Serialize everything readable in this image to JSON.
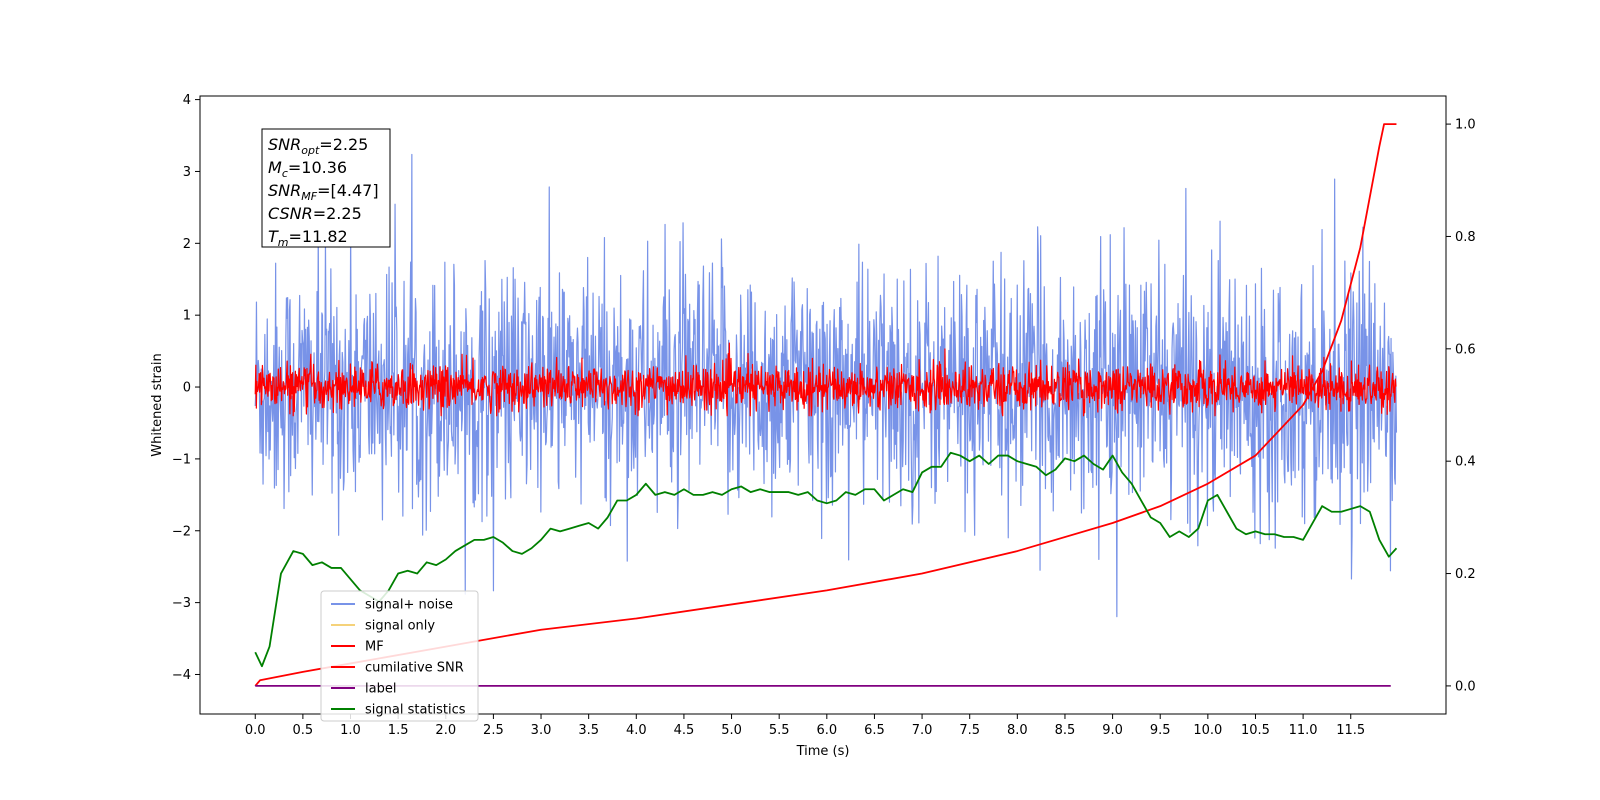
{
  "chart_data": {
    "type": "line",
    "xlabel": "Time (s)",
    "ylabel": "Whitened strain",
    "xlim": [
      -0.58,
      12.5
    ],
    "ylim": [
      -4.55,
      4.05
    ],
    "ylim_right": [
      -0.05,
      1.05
    ],
    "xticks": [
      "0.0",
      "0.5",
      "1.0",
      "1.5",
      "2.0",
      "2.5",
      "3.0",
      "3.5",
      "4.0",
      "4.5",
      "5.0",
      "5.5",
      "6.0",
      "6.5",
      "7.0",
      "7.5",
      "8.0",
      "8.5",
      "9.0",
      "9.5",
      "10.0",
      "10.5",
      "11.0",
      "11.5"
    ],
    "yticks_left": [
      "−4",
      "−3",
      "−2",
      "−1",
      "0",
      "1",
      "2",
      "3",
      "4"
    ],
    "yticks_right": [
      "0.0",
      "0.2",
      "0.4",
      "0.6",
      "0.8",
      "1.0"
    ],
    "legend_position": "lower-left",
    "colors": {
      "signal_noise": "#7893e8",
      "signal_only": "#f5d27a",
      "mf": "#ff0000",
      "cumulative": "#ff0000",
      "label": "#800080",
      "statistics": "#008000"
    },
    "series": [
      {
        "key": "signal_noise",
        "name": "signal+ noise",
        "axis": "left",
        "x_range": [
          0.0,
          11.98
        ],
        "envelope_typical": [
          -1.7,
          1.8
        ],
        "extremes": [
          -3.85,
          3.65
        ]
      },
      {
        "key": "signal_only",
        "name": "signal only",
        "axis": "left"
      },
      {
        "key": "mf",
        "name": "MF",
        "axis": "left",
        "x_range": [
          0.0,
          11.98
        ],
        "envelope_typical": [
          -0.35,
          0.45
        ],
        "extremes": [
          -0.4,
          1.0
        ]
      },
      {
        "key": "cumulative",
        "name": "cumilative SNR",
        "axis": "right",
        "x": [
          0.0,
          0.05,
          0.5,
          1.0,
          2.0,
          3.0,
          4.0,
          5.0,
          6.0,
          7.0,
          8.0,
          9.0,
          9.5,
          10.0,
          10.5,
          11.0,
          11.2,
          11.4,
          11.6,
          11.7,
          11.8,
          11.85,
          11.9,
          11.98
        ],
        "values": [
          0.0,
          0.01,
          0.025,
          0.04,
          0.07,
          0.1,
          0.12,
          0.145,
          0.17,
          0.2,
          0.24,
          0.29,
          0.32,
          0.36,
          0.41,
          0.5,
          0.56,
          0.65,
          0.78,
          0.87,
          0.96,
          1.0,
          1.0,
          1.0
        ]
      },
      {
        "key": "label",
        "name": "label",
        "axis": "right",
        "x": [
          0.0,
          11.92
        ],
        "values": [
          0.0,
          0.0
        ]
      },
      {
        "key": "statistics",
        "name": "signal statistics",
        "axis": "right",
        "x": [
          0.0,
          0.07,
          0.15,
          0.27,
          0.4,
          0.5,
          0.6,
          0.7,
          0.8,
          0.9,
          1.0,
          1.1,
          1.2,
          1.3,
          1.4,
          1.5,
          1.6,
          1.7,
          1.8,
          1.9,
          2.0,
          2.1,
          2.2,
          2.3,
          2.4,
          2.5,
          2.6,
          2.7,
          2.8,
          2.9,
          3.0,
          3.1,
          3.2,
          3.3,
          3.4,
          3.5,
          3.6,
          3.7,
          3.8,
          3.9,
          4.0,
          4.1,
          4.2,
          4.3,
          4.4,
          4.5,
          4.6,
          4.7,
          4.8,
          4.9,
          5.0,
          5.1,
          5.2,
          5.3,
          5.4,
          5.5,
          5.6,
          5.7,
          5.8,
          5.9,
          6.0,
          6.1,
          6.2,
          6.3,
          6.4,
          6.5,
          6.6,
          6.7,
          6.8,
          6.9,
          7.0,
          7.1,
          7.2,
          7.3,
          7.4,
          7.5,
          7.6,
          7.7,
          7.8,
          7.9,
          8.0,
          8.1,
          8.2,
          8.3,
          8.4,
          8.5,
          8.6,
          8.7,
          8.8,
          8.9,
          9.0,
          9.1,
          9.2,
          9.3,
          9.4,
          9.5,
          9.6,
          9.7,
          9.8,
          9.9,
          10.0,
          10.1,
          10.2,
          10.3,
          10.4,
          10.5,
          10.6,
          10.7,
          10.8,
          10.9,
          11.0,
          11.1,
          11.2,
          11.3,
          11.4,
          11.5,
          11.6,
          11.7,
          11.8,
          11.9,
          11.98
        ],
        "values": [
          0.06,
          0.035,
          0.07,
          0.2,
          0.24,
          0.235,
          0.215,
          0.22,
          0.21,
          0.21,
          0.19,
          0.17,
          0.16,
          0.15,
          0.17,
          0.2,
          0.205,
          0.2,
          0.22,
          0.215,
          0.225,
          0.24,
          0.25,
          0.26,
          0.26,
          0.265,
          0.255,
          0.24,
          0.235,
          0.245,
          0.26,
          0.28,
          0.275,
          0.28,
          0.285,
          0.29,
          0.28,
          0.3,
          0.33,
          0.33,
          0.34,
          0.36,
          0.34,
          0.345,
          0.34,
          0.35,
          0.34,
          0.34,
          0.345,
          0.34,
          0.35,
          0.355,
          0.345,
          0.35,
          0.345,
          0.345,
          0.345,
          0.34,
          0.345,
          0.33,
          0.325,
          0.33,
          0.345,
          0.34,
          0.35,
          0.35,
          0.33,
          0.34,
          0.35,
          0.345,
          0.38,
          0.39,
          0.39,
          0.415,
          0.41,
          0.4,
          0.41,
          0.395,
          0.41,
          0.41,
          0.4,
          0.395,
          0.39,
          0.375,
          0.385,
          0.405,
          0.4,
          0.41,
          0.395,
          0.385,
          0.41,
          0.38,
          0.36,
          0.33,
          0.3,
          0.29,
          0.265,
          0.275,
          0.265,
          0.28,
          0.33,
          0.34,
          0.31,
          0.28,
          0.27,
          0.275,
          0.27,
          0.27,
          0.265,
          0.265,
          0.26,
          0.29,
          0.32,
          0.31,
          0.31,
          0.315,
          0.32,
          0.31,
          0.26,
          0.23,
          0.245
        ]
      }
    ],
    "annotation": [
      {
        "name": "SNR",
        "sub": "opt",
        "value": "=2.25"
      },
      {
        "name": "M",
        "sub": "c",
        "value": "=10.36"
      },
      {
        "name": "SNR",
        "sub": "MF",
        "value": "=[4.47]"
      },
      {
        "name": "CSNR",
        "sub": "",
        "value": "=2.25"
      },
      {
        "name": "T",
        "sub": "m",
        "value": "=11.82"
      }
    ]
  }
}
